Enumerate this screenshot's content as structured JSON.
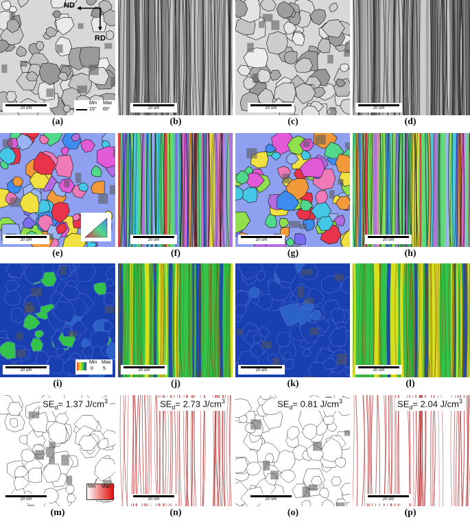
{
  "figure": {
    "captions": [
      "(a)",
      "(b)",
      "(c)",
      "(d)",
      "(e)",
      "(f)",
      "(g)",
      "(h)",
      "(i)",
      "(j)",
      "(k)",
      "(l)",
      "(m)",
      "(n)",
      "(o)",
      "(p)"
    ],
    "scale_bar": "20 um",
    "axes": {
      "nd": "ND",
      "rd": "RD"
    },
    "boundary_legend": {
      "min_label": "Min",
      "max_label": "Max",
      "min_value": "15°",
      "max_value": "65°"
    },
    "kam_legend": {
      "min_label": "Min",
      "max_label": "Max",
      "min_value": "0",
      "max_value": "5"
    },
    "se_legend": {
      "min_label": "Min",
      "max_label": "Max"
    },
    "stored_energy": {
      "prefix": "SE",
      "subscript": "d",
      "values": [
        "= 1.37 J/cm",
        "= 2.73 J/cm",
        "= 0.81 J/cm",
        "= 2.04 J/cm"
      ],
      "exponent": "3"
    }
  },
  "colors": {
    "kam_low": "#1a3fb0",
    "kam_mid": "#33c24a",
    "kam_high": "#e6e21a",
    "se_line": "#b22222"
  },
  "ipf_colors": [
    "#e8334a",
    "#f07ab8",
    "#b46be0",
    "#7a6cf0",
    "#3f8cf0",
    "#45c8e8",
    "#52d88a",
    "#8fe04a",
    "#f0e040",
    "#f29a3a",
    "#e25ad8",
    "#9ab4f4"
  ]
}
